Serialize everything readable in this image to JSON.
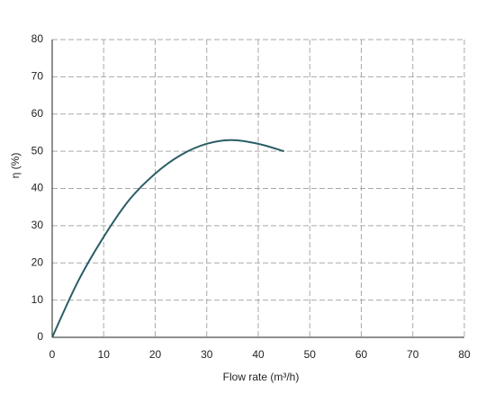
{
  "chart_data": {
    "type": "line",
    "x_label": "Flow rate (m³/h)",
    "y_label": "η (%)",
    "x": [
      0,
      5,
      10,
      15,
      20,
      25,
      30,
      35,
      40,
      45
    ],
    "series": [
      {
        "color": "#2b5e66",
        "values": [
          0,
          15,
          27,
          37,
          44,
          49,
          52,
          53,
          52,
          50
        ]
      }
    ],
    "xlim": [
      0,
      80
    ],
    "xticks": [
      0,
      10,
      20,
      30,
      40,
      50,
      60,
      70,
      80
    ],
    "ylim": [
      0,
      80
    ],
    "yticks": [
      0,
      10,
      20,
      30,
      40,
      50,
      60,
      70,
      80
    ],
    "grid": true
  }
}
